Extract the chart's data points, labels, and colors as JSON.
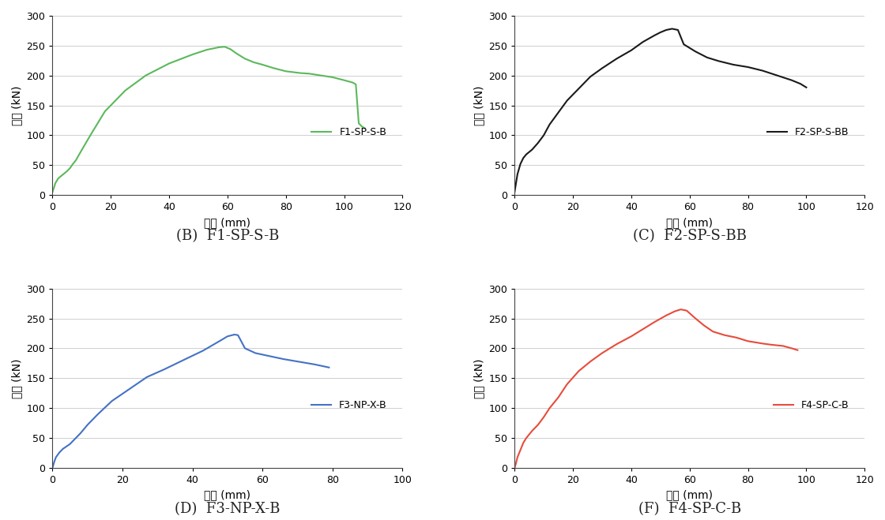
{
  "plots": [
    {
      "label": "F1-SP-S-B",
      "color": "#5cb85c",
      "subtitle": "(B)  F1-SP-S-B",
      "xlim": [
        0,
        120
      ],
      "xticks": [
        0,
        20,
        40,
        60,
        80,
        100,
        120
      ],
      "ylim": [
        0,
        300
      ],
      "yticks": [
        0,
        50,
        100,
        150,
        200,
        250,
        300
      ],
      "x": [
        0,
        0.5,
        1,
        2,
        3,
        4,
        5,
        6,
        7,
        8,
        10,
        13,
        18,
        25,
        32,
        40,
        48,
        53,
        57,
        59,
        61,
        63,
        66,
        69,
        72,
        76,
        80,
        85,
        88,
        92,
        96,
        100,
        103,
        104,
        105,
        106,
        107
      ],
      "y": [
        5,
        12,
        20,
        28,
        32,
        36,
        40,
        45,
        52,
        58,
        75,
        100,
        140,
        175,
        200,
        220,
        235,
        243,
        247,
        248,
        244,
        237,
        228,
        222,
        218,
        212,
        207,
        204,
        203,
        200,
        197,
        192,
        188,
        185,
        120,
        115,
        112
      ]
    },
    {
      "label": "F2-SP-S-BB",
      "color": "#1a1a1a",
      "subtitle": "(C)  F2-SP-S-BB",
      "xlim": [
        0,
        120
      ],
      "xticks": [
        0,
        20,
        40,
        60,
        80,
        100,
        120
      ],
      "ylim": [
        0,
        300
      ],
      "yticks": [
        0,
        50,
        100,
        150,
        200,
        250,
        300
      ],
      "x": [
        0,
        0.5,
        1,
        2,
        3,
        4,
        5,
        6,
        8,
        10,
        12,
        15,
        18,
        22,
        26,
        30,
        35,
        40,
        44,
        48,
        50,
        52,
        54,
        56,
        58,
        62,
        66,
        70,
        75,
        80,
        85,
        90,
        95,
        98,
        100
      ],
      "y": [
        5,
        20,
        35,
        52,
        62,
        68,
        72,
        76,
        87,
        100,
        118,
        138,
        158,
        178,
        198,
        212,
        228,
        242,
        256,
        267,
        272,
        276,
        278,
        276,
        252,
        240,
        230,
        224,
        218,
        214,
        208,
        200,
        192,
        186,
        180
      ]
    },
    {
      "label": "F3-NP-X-B",
      "color": "#4472c4",
      "subtitle": "(D)  F3-NP-X-B",
      "xlim": [
        0,
        100
      ],
      "xticks": [
        0,
        20,
        40,
        60,
        80,
        100
      ],
      "ylim": [
        0,
        300
      ],
      "yticks": [
        0,
        50,
        100,
        150,
        200,
        250,
        300
      ],
      "x": [
        0,
        0.5,
        1,
        2,
        3,
        4,
        5,
        6,
        7,
        8,
        10,
        13,
        17,
        22,
        27,
        32,
        38,
        43,
        48,
        50,
        52,
        53,
        55,
        58,
        62,
        66,
        70,
        75,
        79
      ],
      "y": [
        0,
        10,
        18,
        26,
        32,
        36,
        40,
        46,
        52,
        58,
        72,
        90,
        112,
        132,
        152,
        165,
        182,
        196,
        213,
        220,
        223,
        222,
        200,
        192,
        187,
        182,
        178,
        173,
        168
      ]
    },
    {
      "label": "F4-SP-C-B",
      "color": "#e74c3c",
      "subtitle": "(F)  F4-SP-C-B",
      "xlim": [
        0,
        120
      ],
      "xticks": [
        0,
        20,
        40,
        60,
        80,
        100,
        120
      ],
      "ylim": [
        0,
        300
      ],
      "yticks": [
        0,
        50,
        100,
        150,
        200,
        250,
        300
      ],
      "x": [
        0,
        0.5,
        1,
        2,
        3,
        4,
        5,
        6,
        8,
        10,
        12,
        15,
        18,
        22,
        26,
        30,
        35,
        40,
        44,
        48,
        52,
        55,
        57,
        59,
        62,
        65,
        68,
        72,
        76,
        80,
        85,
        88,
        92,
        95,
        97
      ],
      "y": [
        0,
        8,
        18,
        30,
        42,
        50,
        56,
        62,
        72,
        85,
        100,
        118,
        140,
        162,
        178,
        192,
        207,
        220,
        232,
        244,
        255,
        262,
        265,
        263,
        250,
        238,
        228,
        222,
        218,
        212,
        208,
        206,
        204,
        200,
        197
      ]
    }
  ],
  "ylabel": "하중 (kN)",
  "xlabel": "변위 (mm)",
  "background_color": "#ffffff",
  "grid_color": "#c8c8c8",
  "subtitle_fontsize": 13,
  "axis_label_fontsize": 10,
  "tick_fontsize": 9,
  "legend_fontsize": 9
}
